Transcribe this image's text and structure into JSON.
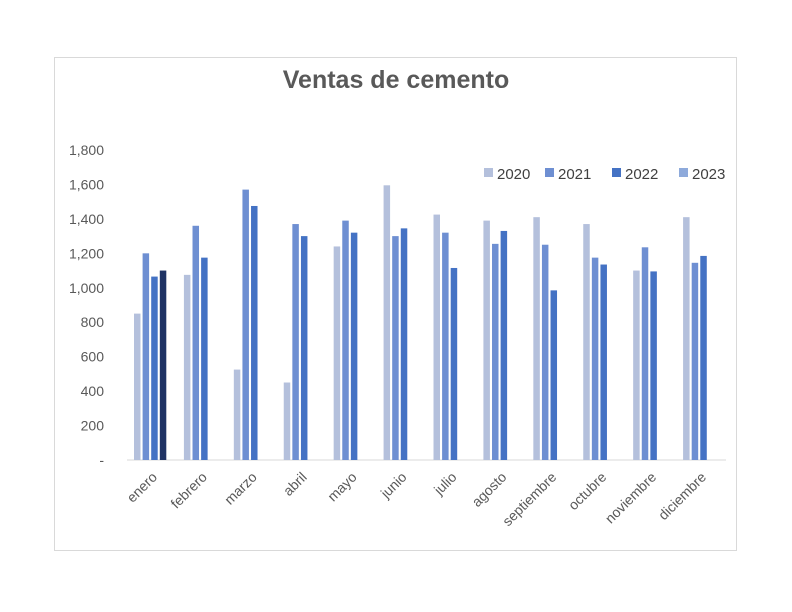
{
  "chart_data": {
    "type": "bar",
    "title": "Ventas de cemento",
    "xlabel": "",
    "ylabel": "",
    "ylim": [
      0,
      1800
    ],
    "yticks": [
      0,
      200,
      400,
      600,
      800,
      1000,
      1200,
      1400,
      1600,
      1800
    ],
    "ytick_labels": [
      "-",
      "200",
      "400",
      "600",
      "800",
      "1,000",
      "1,200",
      "1,400",
      "1,600",
      "1,800"
    ],
    "categories": [
      "enero",
      "febrero",
      "marzo",
      "abril",
      "mayo",
      "junio",
      "julio",
      "agosto",
      "septiembre",
      "octubre",
      "noviembre",
      "diciembre"
    ],
    "series": [
      {
        "name": "2020",
        "color": "#b4c0dc",
        "values": [
          850,
          1075,
          525,
          450,
          1240,
          1595,
          1425,
          1390,
          1410,
          1370,
          1100,
          1410
        ]
      },
      {
        "name": "2021",
        "color": "#6e8fd2",
        "values": [
          1200,
          1360,
          1570,
          1370,
          1390,
          1300,
          1320,
          1255,
          1250,
          1175,
          1235,
          1145
        ]
      },
      {
        "name": "2022",
        "color": "#4472c4",
        "values": [
          1065,
          1175,
          1475,
          1300,
          1320,
          1345,
          1115,
          1330,
          985,
          1135,
          1095,
          1185
        ]
      },
      {
        "name": "2023",
        "color": "#1f3364",
        "values": [
          1100,
          null,
          null,
          null,
          null,
          null,
          null,
          null,
          null,
          null,
          null,
          null
        ]
      }
    ],
    "legend_colors": [
      "#b4c0dc",
      "#6e8fd2",
      "#4472c4",
      "#8eaadb"
    ],
    "legend_position": "top-right",
    "grid": false
  }
}
